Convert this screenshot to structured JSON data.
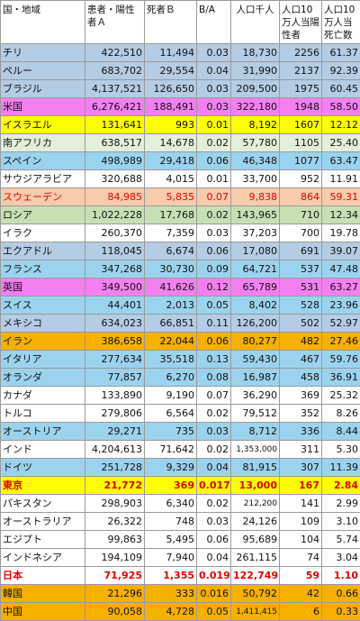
{
  "headers": {
    "country": "国・地域",
    "cases": "患者・陽性者Ａ",
    "deaths": "死者Ｂ",
    "ratio": "B/A",
    "population": "人口千人",
    "per100k_cases": "人口10万人当陽性者",
    "per100k_deaths": "人口10万人当死亡数"
  },
  "rows": [
    {
      "country": "チリ",
      "cases": "422,510",
      "deaths": "11,494",
      "ratio": "0.03",
      "population": "18,730",
      "per100k_cases": "2256",
      "per100k_deaths": "61.37",
      "bg": "#b4cce4"
    },
    {
      "country": "ペルー",
      "cases": "683,702",
      "deaths": "29,554",
      "ratio": "0.04",
      "population": "31,990",
      "per100k_cases": "2137",
      "per100k_deaths": "92.39",
      "bg": "#b4cce4"
    },
    {
      "country": "ブラジル",
      "cases": "4,137,521",
      "deaths": "126,650",
      "ratio": "0.03",
      "population": "209,500",
      "per100k_cases": "1975",
      "per100k_deaths": "60.45",
      "bg": "#b4cce4"
    },
    {
      "country": "米国",
      "cases": "6,276,421",
      "deaths": "188,491",
      "ratio": "0.03",
      "population": "322,180",
      "per100k_cases": "1948",
      "per100k_deaths": "58.50",
      "bg": "#f47ff1"
    },
    {
      "country": "イスラエル",
      "cases": "131,641",
      "deaths": "993",
      "ratio": "0.01",
      "population": "8,192",
      "per100k_cases": "1607",
      "per100k_deaths": "12.12",
      "bg": "#ffff00"
    },
    {
      "country": "南アフリカ",
      "cases": "638,517",
      "deaths": "14,678",
      "ratio": "0.02",
      "population": "57,780",
      "per100k_cases": "1105",
      "per100k_deaths": "25.40",
      "bg": "#e2efd9"
    },
    {
      "country": "スペイン",
      "cases": "498,989",
      "deaths": "29,418",
      "ratio": "0.06",
      "population": "46,348",
      "per100k_cases": "1077",
      "per100k_deaths": "63.47",
      "bg": "#9bd3ef"
    },
    {
      "country": "サウジアラビア",
      "cases": "320,688",
      "deaths": "4,015",
      "ratio": "0.01",
      "population": "33,700",
      "per100k_cases": "952",
      "per100k_deaths": "11.91",
      "bg": "#ffffff"
    },
    {
      "country": "スウェーデン",
      "cases": "84,985",
      "deaths": "5,835",
      "ratio": "0.07",
      "population": "9,838",
      "per100k_cases": "864",
      "per100k_deaths": "59.31",
      "bg": "#f8cbad",
      "red": true
    },
    {
      "country": "ロシア",
      "cases": "1,022,228",
      "deaths": "17,768",
      "ratio": "0.02",
      "population": "143,965",
      "per100k_cases": "710",
      "per100k_deaths": "12.34",
      "bg": "#c6e0b4"
    },
    {
      "country": "イラク",
      "cases": "260,370",
      "deaths": "7,359",
      "ratio": "0.03",
      "population": "37,203",
      "per100k_cases": "700",
      "per100k_deaths": "19.78",
      "bg": "#ffffff"
    },
    {
      "country": "エクアドル",
      "cases": "118,045",
      "deaths": "6,674",
      "ratio": "0.06",
      "population": "17,080",
      "per100k_cases": "691",
      "per100k_deaths": "39.07",
      "bg": "#b4cce4"
    },
    {
      "country": "フランス",
      "cases": "347,268",
      "deaths": "30,730",
      "ratio": "0.09",
      "population": "64,721",
      "per100k_cases": "537",
      "per100k_deaths": "47.48",
      "bg": "#9bd3ef"
    },
    {
      "country": "英国",
      "cases": "349,500",
      "deaths": "41,626",
      "ratio": "0.12",
      "population": "65,789",
      "per100k_cases": "531",
      "per100k_deaths": "63.27",
      "bg": "#f47ff1"
    },
    {
      "country": "スイス",
      "cases": "44,401",
      "deaths": "2,013",
      "ratio": "0.05",
      "population": "8,402",
      "per100k_cases": "528",
      "per100k_deaths": "23.96",
      "bg": "#9bd3ef"
    },
    {
      "country": "メキシコ",
      "cases": "634,023",
      "deaths": "66,851",
      "ratio": "0.11",
      "population": "126,200",
      "per100k_cases": "502",
      "per100k_deaths": "52.97",
      "bg": "#b4cce4"
    },
    {
      "country": "イラン",
      "cases": "386,658",
      "deaths": "22,044",
      "ratio": "0.06",
      "population": "80,277",
      "per100k_cases": "482",
      "per100k_deaths": "27.46",
      "bg": "#f5b000"
    },
    {
      "country": "イタリア",
      "cases": "277,634",
      "deaths": "35,518",
      "ratio": "0.13",
      "population": "59,430",
      "per100k_cases": "467",
      "per100k_deaths": "59.76",
      "bg": "#9bd3ef"
    },
    {
      "country": "オランダ",
      "cases": "77,857",
      "deaths": "6,270",
      "ratio": "0.08",
      "population": "16,987",
      "per100k_cases": "458",
      "per100k_deaths": "36.91",
      "bg": "#9bd3ef"
    },
    {
      "country": "カナダ",
      "cases": "133,890",
      "deaths": "9,190",
      "ratio": "0.07",
      "population": "36,290",
      "per100k_cases": "369",
      "per100k_deaths": "25.32",
      "bg": "#ffffff"
    },
    {
      "country": "トルコ",
      "cases": "279,806",
      "deaths": "6,564",
      "ratio": "0.02",
      "population": "79,512",
      "per100k_cases": "352",
      "per100k_deaths": "8.26",
      "bg": "#ffffff"
    },
    {
      "country": "オーストリア",
      "cases": "29,271",
      "deaths": "735",
      "ratio": "0.03",
      "population": "8,712",
      "per100k_cases": "336",
      "per100k_deaths": "8.44",
      "bg": "#9bd3ef"
    },
    {
      "country": "インド",
      "cases": "4,204,613",
      "deaths": "71,642",
      "ratio": "0.02",
      "population": "1,353,000",
      "per100k_cases": "311",
      "per100k_deaths": "5.30",
      "bg": "#ffffff",
      "smallpop": true
    },
    {
      "country": "ドイツ",
      "cases": "251,728",
      "deaths": "9,329",
      "ratio": "0.04",
      "population": "81,915",
      "per100k_cases": "307",
      "per100k_deaths": "11.39",
      "bg": "#9bd3ef"
    },
    {
      "country": "東京",
      "cases": "21,772",
      "deaths": "369",
      "ratio": "0.017",
      "population": "13,000",
      "per100k_cases": "167",
      "per100k_deaths": "2.84",
      "bg": "#ffff00",
      "bold": true
    },
    {
      "country": "パキスタン",
      "cases": "298,903",
      "deaths": "6,340",
      "ratio": "0.02",
      "population": "212,200",
      "per100k_cases": "141",
      "per100k_deaths": "2.99",
      "bg": "#ffffff",
      "smallpop": true
    },
    {
      "country": "オーストラリア",
      "cases": "26,322",
      "deaths": "748",
      "ratio": "0.03",
      "population": "24,126",
      "per100k_cases": "109",
      "per100k_deaths": "3.10",
      "bg": "#ffffff"
    },
    {
      "country": "エジプト",
      "cases": "99,863",
      "deaths": "5,495",
      "ratio": "0.06",
      "population": "95,689",
      "per100k_cases": "104",
      "per100k_deaths": "5.74",
      "bg": "#ffffff"
    },
    {
      "country": "インドネシア",
      "cases": "194,109",
      "deaths": "7,940",
      "ratio": "0.04",
      "population": "261,115",
      "per100k_cases": "74",
      "per100k_deaths": "3.04",
      "bg": "#ffffff"
    },
    {
      "country": "日本",
      "cases": "71,925",
      "deaths": "1,355",
      "ratio": "0.019",
      "population": "122,749",
      "per100k_cases": "59",
      "per100k_deaths": "1.10",
      "bg": "#ffffff",
      "bold": true
    },
    {
      "country": "韓国",
      "cases": "21,296",
      "deaths": "333",
      "ratio": "0.016",
      "population": "50,792",
      "per100k_cases": "42",
      "per100k_deaths": "0.66",
      "bg": "#f5b000"
    },
    {
      "country": "中国",
      "cases": "90,058",
      "deaths": "4,728",
      "ratio": "0.05",
      "population": "1,411,415",
      "per100k_cases": "6",
      "per100k_deaths": "0.33",
      "bg": "#f5b000",
      "smallpop": true
    }
  ]
}
